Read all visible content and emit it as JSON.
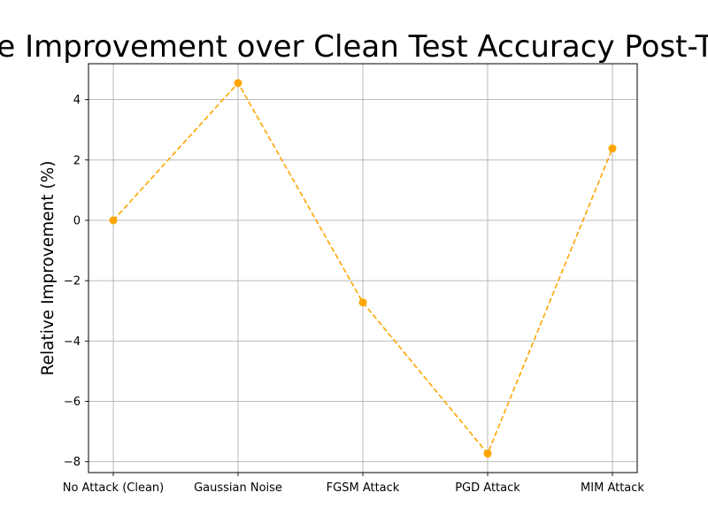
{
  "chart_data": {
    "type": "line",
    "title": "Relative Improvement over Clean Test Accuracy Post-Training",
    "xlabel": "",
    "ylabel": "Relative Improvement (%)",
    "categories": [
      "No Attack (Clean)",
      "Gaussian Noise",
      "FGSM Attack",
      "PGD Attack",
      "MIM Attack"
    ],
    "series": [
      {
        "values": [
          0.0,
          4.55,
          -2.72,
          -7.73,
          2.38
        ]
      }
    ],
    "yticks": [
      4,
      2,
      0,
      -2,
      -4,
      -6,
      -8
    ],
    "ytick_labels": [
      "4",
      "2",
      "0",
      "−2",
      "−4",
      "−6",
      "−8"
    ],
    "ylim": [
      -8.36,
      5.19
    ],
    "grid": true,
    "line_color": "#ffa500",
    "line_style": "dashed",
    "marker": "circle"
  }
}
